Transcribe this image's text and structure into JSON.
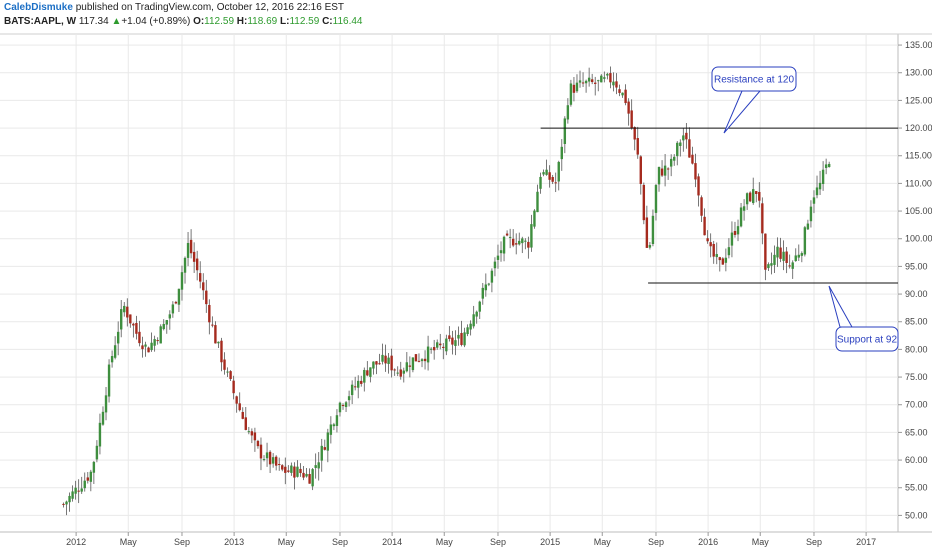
{
  "header": {
    "author": "CalebDismuke",
    "published": "published on TradingView.com, October 12, 2016 22:16 EST",
    "symbol": "BATS:AAPL, W",
    "last": "117.34",
    "change": "+1.04 (+0.89%)",
    "o_label": "O:",
    "o_value": "112.59",
    "h_label": "H:",
    "h_value": "118.69",
    "l_label": "L:",
    "l_value": "112.59",
    "c_label": "C:",
    "c_value": "116.44"
  },
  "colors": {
    "up": "#3e8e3e",
    "down": "#a52a1e",
    "wick": "#555555",
    "grid": "#e9e9e9",
    "line": "#111111",
    "callout_border": "#2a3fbf"
  },
  "chart_data": {
    "type": "candlestick",
    "timeframe": "weekly",
    "ylim": [
      47,
      137
    ],
    "y_ticks": [
      "135.00",
      "130.00",
      "125.00",
      "120.00",
      "115.00",
      "110.00",
      "105.00",
      "100.00",
      "95.00",
      "90.00",
      "85.00",
      "80.00",
      "75.00",
      "70.00",
      "65.00",
      "60.00",
      "55.00",
      "50.00"
    ],
    "x_ticks": [
      "2012",
      "May",
      "Sep",
      "2013",
      "May",
      "Sep",
      "2014",
      "May",
      "Sep",
      "2015",
      "May",
      "Sep",
      "2016",
      "May",
      "Sep",
      "2017"
    ],
    "price_path": [
      [
        2011.92,
        52
      ],
      [
        2012.1,
        58
      ],
      [
        2012.22,
        78
      ],
      [
        2012.3,
        88
      ],
      [
        2012.38,
        83
      ],
      [
        2012.45,
        80
      ],
      [
        2012.55,
        84
      ],
      [
        2012.62,
        88
      ],
      [
        2012.71,
        99
      ],
      [
        2012.78,
        93
      ],
      [
        2012.88,
        82
      ],
      [
        2012.96,
        75
      ],
      [
        2013.05,
        68
      ],
      [
        2013.14,
        62
      ],
      [
        2013.22,
        60
      ],
      [
        2013.3,
        58
      ],
      [
        2013.4,
        58
      ],
      [
        2013.48,
        57
      ],
      [
        2013.56,
        62
      ],
      [
        2013.66,
        70
      ],
      [
        2013.76,
        73
      ],
      [
        2013.86,
        77
      ],
      [
        2013.96,
        78
      ],
      [
        2014.04,
        76
      ],
      [
        2014.12,
        78
      ],
      [
        2014.2,
        79
      ],
      [
        2014.28,
        80
      ],
      [
        2014.36,
        81
      ],
      [
        2014.44,
        82
      ],
      [
        2014.52,
        87
      ],
      [
        2014.62,
        93
      ],
      [
        2014.7,
        99
      ],
      [
        2014.78,
        100
      ],
      [
        2014.86,
        99
      ],
      [
        2014.94,
        112
      ],
      [
        2015.04,
        110
      ],
      [
        2015.12,
        127
      ],
      [
        2015.22,
        128
      ],
      [
        2015.3,
        128
      ],
      [
        2015.4,
        129
      ],
      [
        2015.48,
        125
      ],
      [
        2015.56,
        114
      ],
      [
        2015.62,
        96
      ],
      [
        2015.68,
        112
      ],
      [
        2015.76,
        113
      ],
      [
        2015.84,
        119
      ],
      [
        2015.92,
        112
      ],
      [
        2016.0,
        98
      ],
      [
        2016.08,
        95
      ],
      [
        2016.16,
        101
      ],
      [
        2016.24,
        107
      ],
      [
        2016.32,
        109
      ],
      [
        2016.36,
        93
      ],
      [
        2016.44,
        98
      ],
      [
        2016.52,
        95
      ],
      [
        2016.6,
        99
      ],
      [
        2016.66,
        108
      ],
      [
        2016.7,
        109
      ],
      [
        2016.76,
        114
      ],
      [
        2016.78,
        116
      ]
    ],
    "horizontal_lines": [
      {
        "value": 120,
        "x_start": 2014.94,
        "x_end": 2017.35
      },
      {
        "value": 92,
        "x_start": 2015.62,
        "x_end": 2017.35
      }
    ],
    "annotations": [
      {
        "text": "Resistance at 120"
      },
      {
        "text": "Support at 92"
      }
    ]
  }
}
